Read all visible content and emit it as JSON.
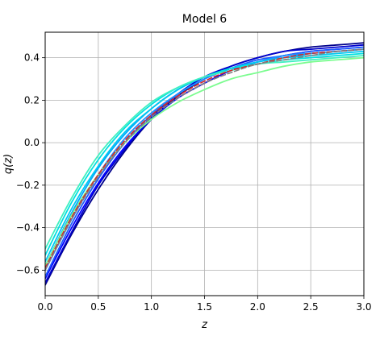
{
  "chart_data": {
    "type": "line",
    "title": "Model 6",
    "xlabel": "z",
    "ylabel": "q(z)",
    "xlim": [
      0,
      3
    ],
    "ylim": [
      -0.72,
      0.52
    ],
    "x_ticks": [
      0.0,
      0.5,
      1.0,
      1.5,
      2.0,
      2.5,
      3.0
    ],
    "x_tick_labels": [
      "0.0",
      "0.5",
      "1.0",
      "1.5",
      "2.0",
      "2.5",
      "3.0"
    ],
    "y_ticks": [
      -0.6,
      -0.4,
      -0.2,
      0.0,
      0.2,
      0.4
    ],
    "y_tick_labels": [
      "−0.6",
      "−0.4",
      "−0.2",
      "0.0",
      "0.2",
      "0.4"
    ],
    "grid": true,
    "x": [
      0,
      0.25,
      0.5,
      0.75,
      1.0,
      1.25,
      1.5,
      1.75,
      2.0,
      2.25,
      2.5,
      2.75,
      3.0
    ],
    "series": [
      {
        "color": "#00008b",
        "style": "solid",
        "values": [
          -0.67,
          -0.43,
          -0.22,
          -0.04,
          0.11,
          0.22,
          0.3,
          0.36,
          0.4,
          0.43,
          0.45,
          0.46,
          0.47
        ]
      },
      {
        "color": "#0000cd",
        "style": "solid",
        "values": [
          -0.66,
          -0.42,
          -0.2,
          -0.03,
          0.12,
          0.23,
          0.31,
          0.36,
          0.4,
          0.43,
          0.44,
          0.45,
          0.46
        ]
      },
      {
        "color": "#0000ff",
        "style": "solid",
        "values": [
          -0.64,
          -0.4,
          -0.19,
          -0.02,
          0.11,
          0.21,
          0.28,
          0.34,
          0.38,
          0.41,
          0.43,
          0.44,
          0.45
        ]
      },
      {
        "color": "#1e5aff",
        "style": "solid",
        "values": [
          -0.63,
          -0.38,
          -0.17,
          0.0,
          0.13,
          0.23,
          0.3,
          0.35,
          0.39,
          0.41,
          0.43,
          0.44,
          0.45
        ]
      },
      {
        "color": "#1e90ff",
        "style": "solid",
        "values": [
          -0.6,
          -0.36,
          -0.15,
          0.02,
          0.14,
          0.23,
          0.3,
          0.35,
          0.38,
          0.41,
          0.42,
          0.43,
          0.44
        ]
      },
      {
        "color": "#00a8ff",
        "style": "solid",
        "values": [
          -0.58,
          -0.33,
          -0.12,
          0.04,
          0.16,
          0.25,
          0.31,
          0.35,
          0.38,
          0.4,
          0.42,
          0.43,
          0.44
        ]
      },
      {
        "color": "#00c8f0",
        "style": "solid",
        "values": [
          -0.56,
          -0.31,
          -0.11,
          0.05,
          0.16,
          0.25,
          0.31,
          0.35,
          0.38,
          0.4,
          0.41,
          0.42,
          0.43
        ]
      },
      {
        "color": "#00e0e0",
        "style": "solid",
        "values": [
          -0.53,
          -0.28,
          -0.08,
          0.07,
          0.18,
          0.26,
          0.31,
          0.35,
          0.37,
          0.39,
          0.4,
          0.41,
          0.42
        ]
      },
      {
        "color": "#40f0c0",
        "style": "solid",
        "values": [
          -0.5,
          -0.26,
          -0.06,
          0.08,
          0.19,
          0.26,
          0.31,
          0.34,
          0.37,
          0.38,
          0.39,
          0.4,
          0.41
        ]
      },
      {
        "color": "#7cfc90",
        "style": "solid",
        "values": [
          -0.58,
          -0.34,
          -0.15,
          0.0,
          0.11,
          0.19,
          0.25,
          0.3,
          0.33,
          0.36,
          0.38,
          0.39,
          0.4
        ]
      },
      {
        "color": "#d62728",
        "style": "dashed",
        "values": [
          -0.59,
          -0.35,
          -0.15,
          0.01,
          0.13,
          0.22,
          0.29,
          0.34,
          0.37,
          0.4,
          0.42,
          0.43,
          0.44
        ]
      },
      {
        "color": "#808080",
        "style": "dashed",
        "values": [
          -0.6,
          -0.36,
          -0.16,
          0.0,
          0.12,
          0.21,
          0.28,
          0.33,
          0.37,
          0.39,
          0.41,
          0.43,
          0.44
        ]
      }
    ]
  }
}
